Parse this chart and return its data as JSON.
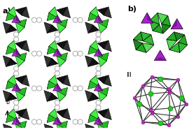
{
  "fig_width": 2.8,
  "fig_height": 1.89,
  "dpi": 100,
  "bg_color": "#ffffff",
  "label_a": "a)",
  "label_b": "b)",
  "label_III": "III",
  "green_color": "#22bb22",
  "green_dark": "#158015",
  "purple_color": "#aa22cc",
  "purple_dark": "#771599",
  "black_color": "#111111",
  "gray_color": "#555555",
  "node_green": "#22cc22",
  "node_purple": "#cc22cc",
  "edge_color": "#333333",
  "ring_color": "#aaaaaa"
}
